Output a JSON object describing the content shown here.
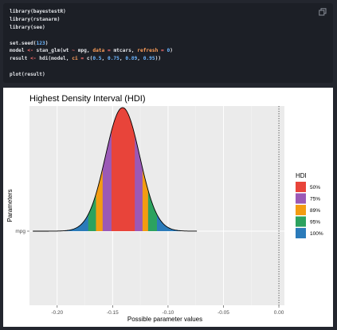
{
  "code": {
    "lines": [
      [
        {
          "t": "library(bayestestR)",
          "c": "fn"
        }
      ],
      [
        {
          "t": "library(rstanarm)",
          "c": "fn"
        }
      ],
      [
        {
          "t": "library(see)",
          "c": "fn"
        }
      ],
      [
        {
          "t": "",
          "c": "fn"
        }
      ],
      [
        {
          "t": "set.seed(",
          "c": "fn"
        },
        {
          "t": "123",
          "c": "num"
        },
        {
          "t": ")",
          "c": "fn"
        }
      ],
      [
        {
          "t": "model ",
          "c": "fn"
        },
        {
          "t": "<-",
          "c": "op"
        },
        {
          "t": " stan_glm(wt ",
          "c": "fn"
        },
        {
          "t": "~",
          "c": "op"
        },
        {
          "t": " mpg, ",
          "c": "fn"
        },
        {
          "t": "data",
          "c": "arg"
        },
        {
          "t": " = ",
          "c": "op"
        },
        {
          "t": "mtcars, ",
          "c": "fn"
        },
        {
          "t": "refresh",
          "c": "arg"
        },
        {
          "t": " = ",
          "c": "op"
        },
        {
          "t": "0",
          "c": "num"
        },
        {
          "t": ")",
          "c": "fn"
        }
      ],
      [
        {
          "t": "result ",
          "c": "fn"
        },
        {
          "t": "<-",
          "c": "op"
        },
        {
          "t": " hdi(model, ",
          "c": "fn"
        },
        {
          "t": "ci",
          "c": "arg"
        },
        {
          "t": " = ",
          "c": "op"
        },
        {
          "t": "c(",
          "c": "fn"
        },
        {
          "t": "0.5",
          "c": "num"
        },
        {
          "t": ", ",
          "c": "fn"
        },
        {
          "t": "0.75",
          "c": "num"
        },
        {
          "t": ", ",
          "c": "fn"
        },
        {
          "t": "0.89",
          "c": "num"
        },
        {
          "t": ", ",
          "c": "fn"
        },
        {
          "t": "0.95",
          "c": "num"
        },
        {
          "t": "))",
          "c": "fn"
        }
      ],
      [
        {
          "t": "",
          "c": "fn"
        }
      ],
      [
        {
          "t": "plot(result)",
          "c": "fn"
        }
      ]
    ],
    "copy_icon": "copy-icon"
  },
  "colors": {
    "background": "#23262e",
    "code_bg": "#1c1f26",
    "panel_bg": "#ebebeb",
    "hdi_50": "#e8443a",
    "hdi_75": "#9b59b6",
    "hdi_89": "#f39c12",
    "hdi_95": "#2ca25f",
    "hdi_100": "#2b7bba"
  },
  "chart_data": {
    "type": "density",
    "title": "Highest Density Interval (HDI)",
    "xlabel": "Possible parameter values",
    "ylabel": "Parameters",
    "y_category": "mpg",
    "xlim": [
      -0.225,
      0.005
    ],
    "x_ticks": [
      -0.2,
      -0.15,
      -0.1,
      -0.05,
      0.0
    ],
    "x_tick_labels": [
      "-0.20",
      "-0.15",
      "-0.10",
      "-0.05",
      "0.00"
    ],
    "reference_line_x": 0.0,
    "grid": true,
    "legend_title": "HDI",
    "legend_position": "right",
    "legend": [
      {
        "label": "50%",
        "color": "#e8443a"
      },
      {
        "label": "75%",
        "color": "#9b59b6"
      },
      {
        "label": "89%",
        "color": "#f39c12"
      },
      {
        "label": "95%",
        "color": "#2ca25f"
      },
      {
        "label": "100%",
        "color": "#2b7bba"
      }
    ],
    "posterior": {
      "mode": -0.141,
      "sd": 0.0155,
      "min": -0.222,
      "max": -0.074
    },
    "intervals": [
      {
        "ci": "50%",
        "low": -0.151,
        "high": -0.13
      },
      {
        "ci": "75%",
        "low": -0.159,
        "high": -0.123
      },
      {
        "ci": "89%",
        "low": -0.165,
        "high": -0.118
      },
      {
        "ci": "95%",
        "low": -0.172,
        "high": -0.11
      },
      {
        "ci": "100%",
        "low": -0.222,
        "high": -0.074
      }
    ]
  }
}
